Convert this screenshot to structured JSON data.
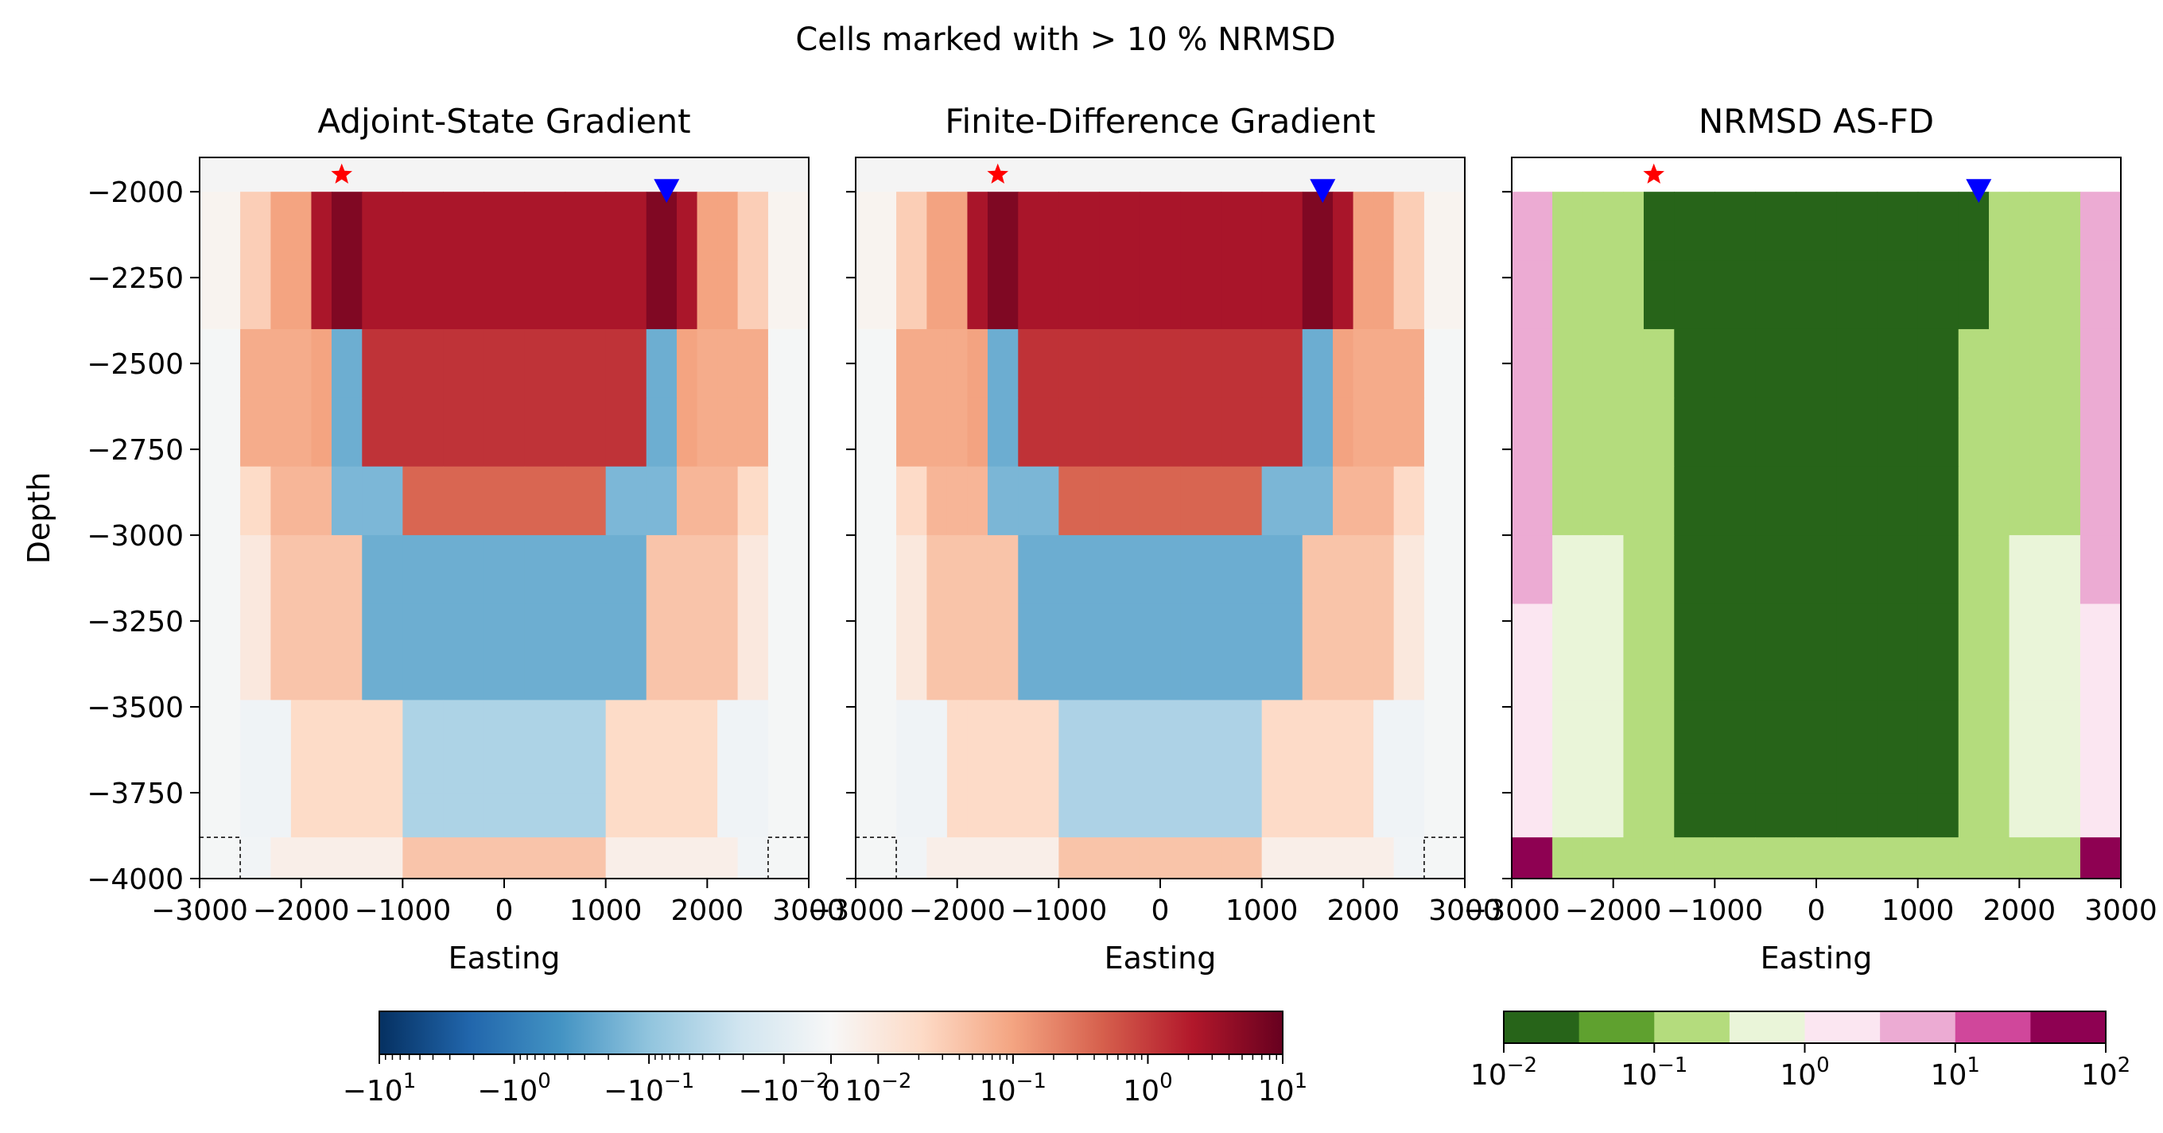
{
  "figure_title": "Cells marked with > 10 % NRMSD",
  "chart_data": [
    {
      "type": "heatmap",
      "title": "Adjoint-State Gradient",
      "xlabel": "Easting",
      "ylabel": "Depth",
      "xlim": [
        -3000,
        3000
      ],
      "ylim": [
        -4000,
        -1900
      ],
      "x_ticks": [
        -3000,
        -2000,
        -1000,
        0,
        1000,
        2000,
        3000
      ],
      "x_tick_labels": [
        "−3000",
        "−2000",
        "−1000",
        "0",
        "1000",
        "2000",
        "3000"
      ],
      "y_ticks": [
        -2000,
        -2250,
        -2500,
        -2750,
        -3000,
        -3250,
        -3500,
        -3750,
        -4000
      ],
      "y_tick_labels": [
        "−2000",
        "−2250",
        "−2500",
        "−2750",
        "−3000",
        "−3250",
        "−3500",
        "−3750",
        "−4000"
      ],
      "markers": [
        {
          "type": "source-star",
          "x": -1600,
          "y": -1950,
          "color": "#ff0000"
        },
        {
          "type": "receiver-triangle",
          "x": 1600,
          "y": -2000,
          "color": "#0000ff"
        }
      ]
    },
    {
      "type": "heatmap",
      "title": "Finite-Difference Gradient",
      "xlabel": "Easting",
      "xlim": [
        -3000,
        3000
      ],
      "ylim": [
        -4000,
        -1900
      ],
      "x_ticks": [
        -3000,
        -2000,
        -1000,
        0,
        1000,
        2000,
        3000
      ],
      "x_tick_labels": [
        "−3000",
        "−2000",
        "−1000",
        "0",
        "1000",
        "2000",
        "3000"
      ],
      "markers": [
        {
          "type": "source-star",
          "x": -1600,
          "y": -1950,
          "color": "#ff0000"
        },
        {
          "type": "receiver-triangle",
          "x": 1600,
          "y": -2000,
          "color": "#0000ff"
        }
      ]
    },
    {
      "type": "heatmap",
      "title": "NRMSD AS-FD",
      "xlabel": "Easting",
      "xlim": [
        -3000,
        3000
      ],
      "ylim": [
        -4000,
        -1900
      ],
      "x_ticks": [
        -3000,
        -2000,
        -1000,
        0,
        1000,
        2000,
        3000
      ],
      "x_tick_labels": [
        "−3000",
        "−2000",
        "−1000",
        "0",
        "1000",
        "2000",
        "3000"
      ],
      "markers": [
        {
          "type": "source-star",
          "x": -1600,
          "y": -1950,
          "color": "#ff0000"
        },
        {
          "type": "receiver-triangle",
          "x": 1600,
          "y": -2000,
          "color": "#0000ff"
        }
      ]
    }
  ],
  "colorbar_gradient": {
    "scale": "symlog",
    "range": [
      -10,
      10
    ],
    "colors": [
      "#053061",
      "#2166ac",
      "#4393c3",
      "#92c5de",
      "#d1e5f0",
      "#f7f7f7",
      "#fddbc7",
      "#f4a582",
      "#d6604d",
      "#b2182b",
      "#67001f"
    ],
    "tick_labels": [
      "−10",
      "−10",
      "−10",
      "−10",
      "0",
      "10",
      "10",
      "10",
      "10"
    ],
    "tick_exponents": [
      "1",
      "0",
      "−1",
      "−2",
      "",
      "−2",
      "−1",
      "0",
      "1"
    ]
  },
  "colorbar_nrmsd": {
    "scale": "log",
    "range": [
      0.01,
      100
    ],
    "colors": [
      "#276419",
      "#5fa12f",
      "#b4dc7d",
      "#eaf5d9",
      "#fbe6f1",
      "#ecabd3",
      "#d0479b",
      "#8e0152"
    ],
    "tick_labels": [
      "10",
      "10",
      "10",
      "10",
      "10"
    ],
    "tick_exponents": [
      "−2",
      "−1",
      "0",
      "1",
      "2"
    ]
  }
}
